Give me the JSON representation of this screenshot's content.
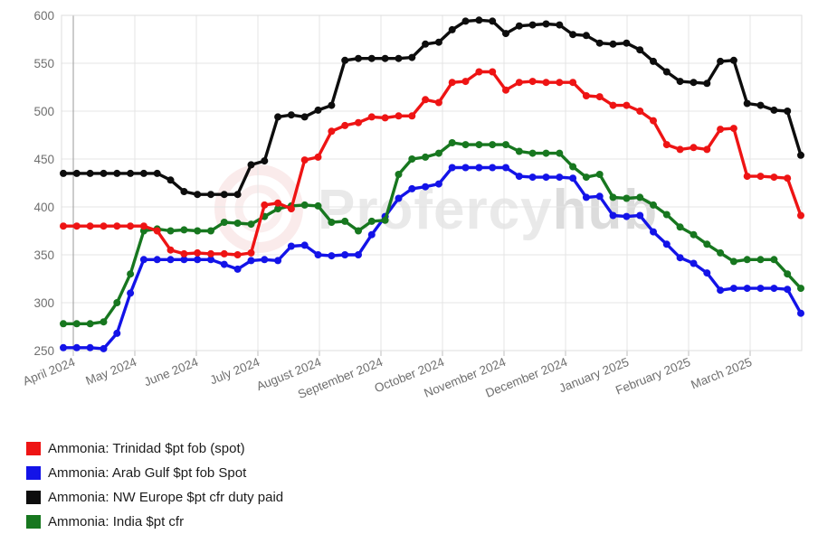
{
  "watermark": {
    "logo": "profercy-rings-logo",
    "text_regular": "Profercy",
    "text_bold": "hub",
    "text_color": "#e9e9e9",
    "bold_color": "#dcdcdc",
    "ring_color": "#e08a8a"
  },
  "chart_data": {
    "type": "line",
    "title": "",
    "grid": true,
    "legend_position": "bottom-left",
    "y_axis": {
      "min": 250,
      "max": 600,
      "step": 50,
      "ticks": [
        600,
        550,
        500,
        450,
        400,
        350,
        300,
        250
      ]
    },
    "x_labels": [
      "April 2024",
      "May 2024",
      "June 2024",
      "July 2024",
      "August 2024",
      "September 2024",
      "October 2024",
      "November 2024",
      "December 2024",
      "January 2025",
      "February 2025",
      "March 2025"
    ],
    "series": [
      {
        "key": "trinidad",
        "name": "Ammonia: Trinidad $pt fob (spot)",
        "color": "#ee1414",
        "values": [
          380,
          380,
          380,
          380,
          380,
          380,
          380,
          375,
          355,
          351,
          352,
          351,
          351,
          350,
          352,
          402,
          404,
          398,
          449,
          452,
          479,
          485,
          488,
          494,
          493,
          495,
          495,
          512,
          509,
          530,
          531,
          541,
          541,
          522,
          530,
          531,
          530,
          530,
          530,
          516,
          515,
          506,
          506,
          500,
          490,
          465,
          460,
          462,
          460,
          481,
          482,
          432,
          432,
          431,
          430,
          391
        ]
      },
      {
        "key": "arab-gulf",
        "name": "Ammonia: Arab Gulf $pt fob Spot",
        "color": "#1313e8",
        "values": [
          253,
          253,
          253,
          252,
          268,
          310,
          345,
          345,
          345,
          345,
          345,
          345,
          340,
          335,
          344,
          345,
          344,
          359,
          360,
          350,
          349,
          350,
          350,
          371,
          390,
          409,
          419,
          421,
          424,
          441,
          441,
          441,
          441,
          441,
          432,
          431,
          431,
          431,
          430,
          410,
          411,
          391,
          390,
          391,
          374,
          361,
          347,
          341,
          331,
          313,
          315,
          315,
          315,
          315,
          314,
          289
        ]
      },
      {
        "key": "nw-europe",
        "name": "Ammonia: NW Europe $pt cfr duty paid",
        "color": "#0d0d0d",
        "values": [
          435,
          435,
          435,
          435,
          435,
          435,
          435,
          435,
          428,
          416,
          413,
          413,
          413,
          413,
          444,
          448,
          494,
          496,
          494,
          501,
          506,
          553,
          555,
          555,
          555,
          555,
          556,
          570,
          572,
          585,
          594,
          595,
          594,
          581,
          589,
          590,
          591,
          590,
          580,
          579,
          571,
          570,
          571,
          564,
          552,
          541,
          531,
          530,
          529,
          552,
          553,
          508,
          506,
          501,
          500,
          454
        ]
      },
      {
        "key": "india",
        "name": "Ammonia: India $pt cfr",
        "color": "#17771f",
        "values": [
          278,
          278,
          278,
          280,
          300,
          330,
          375,
          377,
          375,
          376,
          375,
          375,
          384,
          383,
          382,
          390,
          398,
          401,
          402,
          401,
          384,
          385,
          375,
          385,
          386,
          434,
          450,
          452,
          456,
          467,
          465,
          465,
          465,
          465,
          458,
          456,
          456,
          456,
          442,
          431,
          434,
          410,
          409,
          410,
          402,
          392,
          379,
          371,
          361,
          352,
          343,
          345,
          345,
          345,
          330,
          315
        ]
      }
    ]
  }
}
